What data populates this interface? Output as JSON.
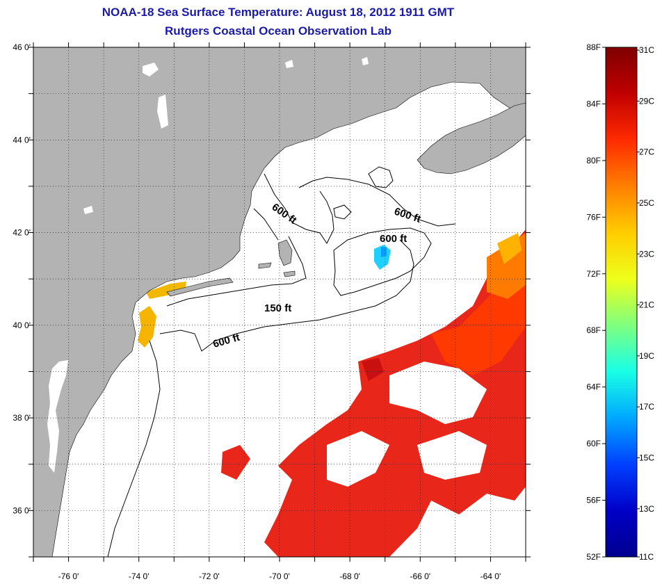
{
  "title_line1": "NOAA-18 Sea Surface Temperature:  August 18, 2012 1911 GMT",
  "title_line2": "Rutgers Coastal Ocean Observation Lab",
  "map": {
    "lon_range": [
      -77,
      -63
    ],
    "lat_range": [
      35,
      46
    ],
    "lon_ticks": [
      {
        "value": -76,
        "label": "-76 0'"
      },
      {
        "value": -74,
        "label": "-74 0'"
      },
      {
        "value": -72,
        "label": "-72 0'"
      },
      {
        "value": -70,
        "label": "-70 0'"
      },
      {
        "value": -68,
        "label": "-68 0'"
      },
      {
        "value": -66,
        "label": "-66 0'"
      },
      {
        "value": -64,
        "label": "-64 0'"
      }
    ],
    "lat_ticks": [
      {
        "value": 46,
        "label": "46 0'"
      },
      {
        "value": 44,
        "label": "44 0'"
      },
      {
        "value": 42,
        "label": "42 0'"
      },
      {
        "value": 40,
        "label": "40 0'"
      },
      {
        "value": 38,
        "label": "38 0'"
      },
      {
        "value": 36,
        "label": "36 0'"
      }
    ],
    "grid": "dotted",
    "land_color": "#b3b3b3",
    "contour_labels": [
      {
        "text": "600 ft"
      },
      {
        "text": "600 ft"
      },
      {
        "text": "600 ft"
      },
      {
        "text": "150 ft"
      },
      {
        "text": "600 ft"
      }
    ]
  },
  "colorbar": {
    "fahrenheit_labels": [
      "88F",
      "84F",
      "80F",
      "76F",
      "72F",
      "68F",
      "64F",
      "60F",
      "56F",
      "52F"
    ],
    "celsius_labels": [
      "31C",
      "29C",
      "27C",
      "25C",
      "23C",
      "21C",
      "19C",
      "17C",
      "15C",
      "13C",
      "11C"
    ],
    "colors_top_to_bottom": [
      "#7f0000",
      "#c00000",
      "#ff2a00",
      "#ff7f00",
      "#ffcc00",
      "#eeff1a",
      "#7fff7f",
      "#19ffe6",
      "#00a8ff",
      "#0040ff",
      "#0000c8",
      "#00008f"
    ]
  }
}
